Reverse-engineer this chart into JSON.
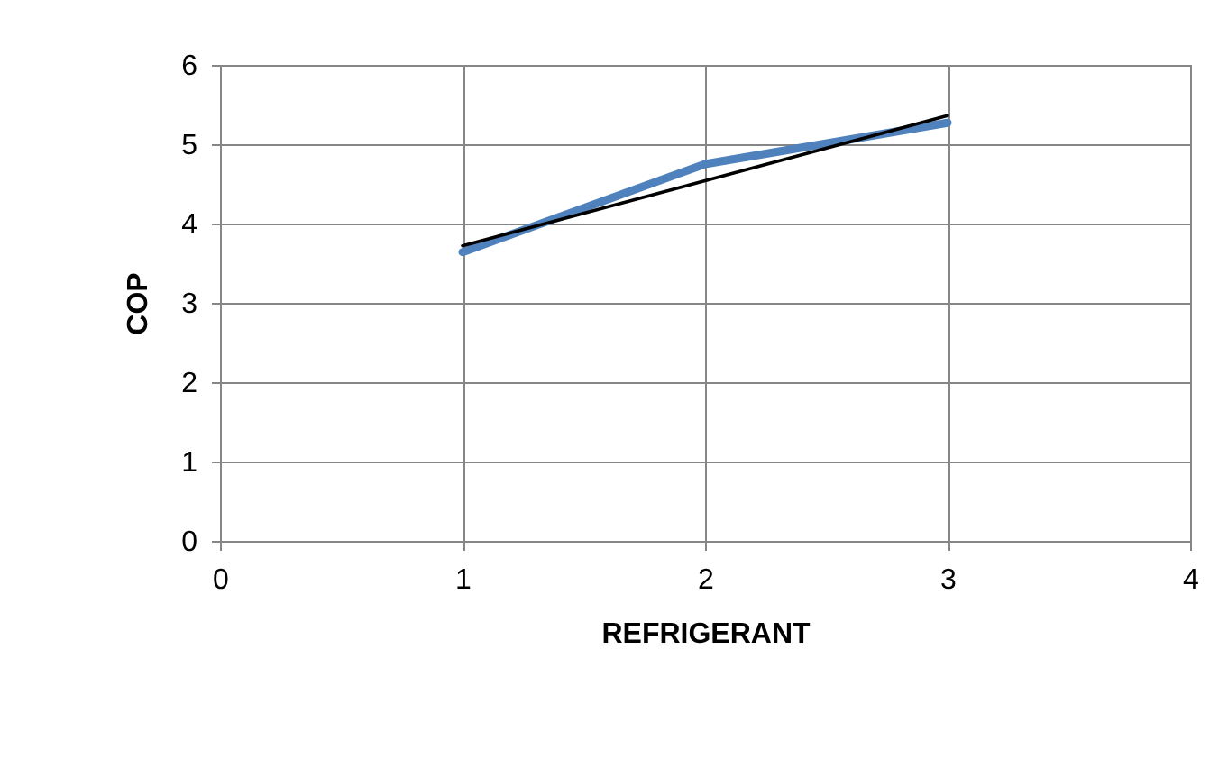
{
  "chart_data": {
    "type": "line",
    "xlabel": "REFRIGERANT",
    "ylabel": "COP",
    "x": [
      1,
      2,
      3
    ],
    "series": [
      {
        "color": "#4f81bd",
        "values": [
          3.64,
          4.75,
          5.27
        ]
      },
      {
        "type": "line",
        "x": [
          1,
          3
        ],
        "color": "#000000",
        "values": [
          3.72,
          5.36
        ]
      }
    ],
    "xlim": [
      0,
      4
    ],
    "xticks": [
      0,
      1,
      2,
      3,
      4
    ],
    "ylim": [
      0,
      6
    ],
    "yticks": [
      0,
      1,
      2,
      3,
      4,
      5,
      6
    ],
    "grid": true,
    "marker": "none"
  }
}
